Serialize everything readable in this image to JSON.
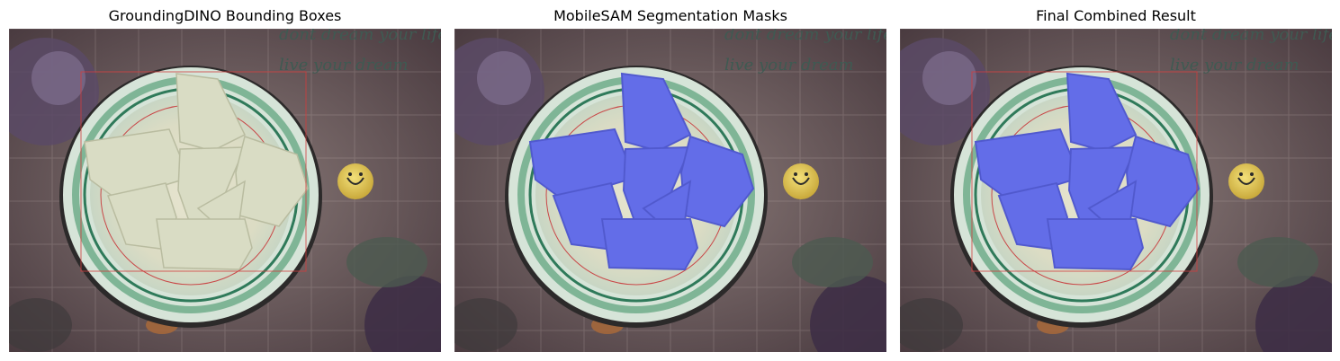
{
  "figure": {
    "panels": [
      {
        "title": "GroundingDINO Bounding Boxes",
        "show_box": true,
        "show_mask": false
      },
      {
        "title": "MobileSAM Segmentation Masks",
        "show_box": false,
        "show_mask": true
      },
      {
        "title": "Final Combined Result",
        "show_box": true,
        "show_mask": true
      }
    ],
    "wall_text": {
      "line1": "dont dream your life",
      "line2": "live your dream"
    },
    "colors": {
      "mask": "#4a55f0",
      "box": "#d23c3c",
      "background": "#6b5a5c",
      "plate_rim": "#aac9b3",
      "food": "#d9dcc4"
    }
  }
}
